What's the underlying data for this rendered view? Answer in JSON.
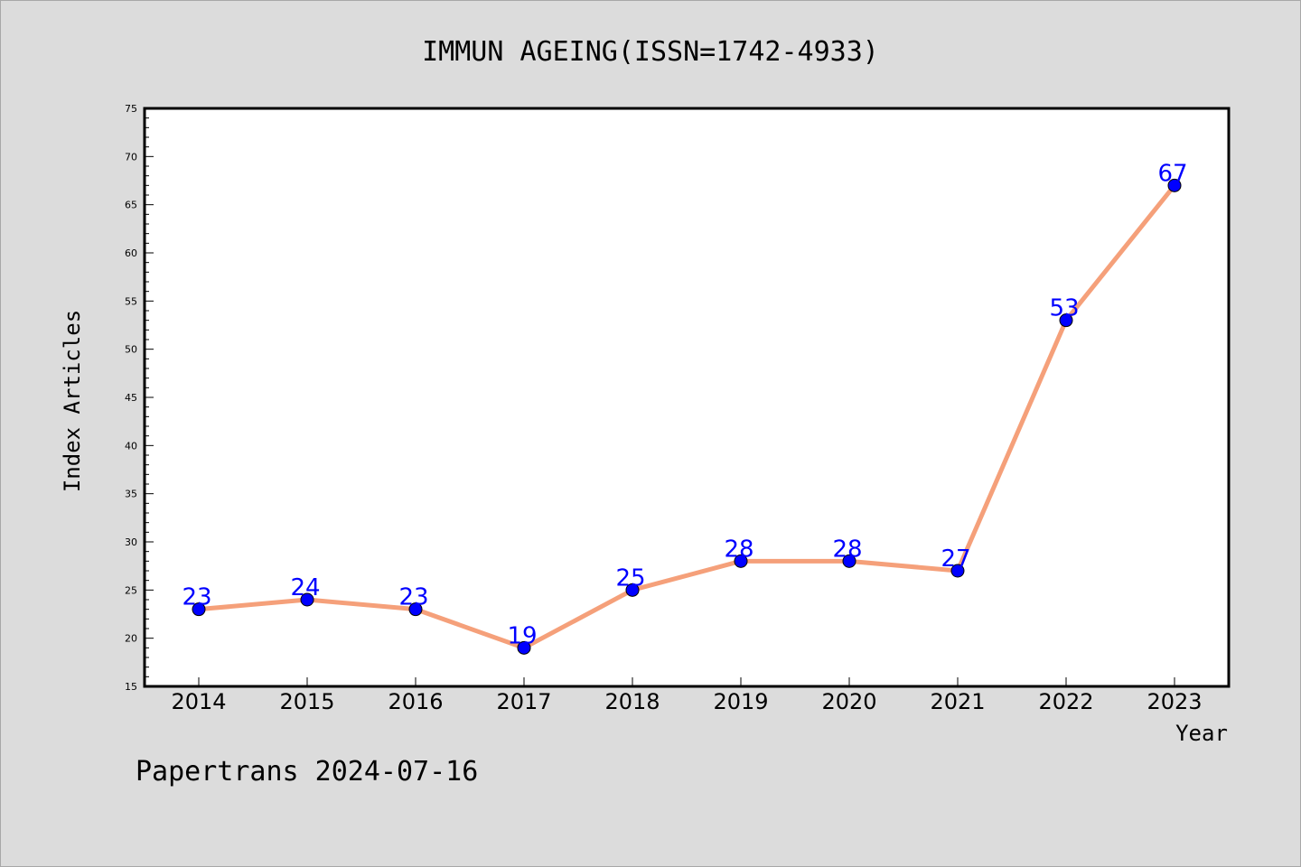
{
  "chart_data": {
    "type": "line",
    "title": "IMMUN AGEING(ISSN=1742-4933)",
    "xlabel": "Year",
    "ylabel": "Index Articles",
    "categories": [
      "2014",
      "2015",
      "2016",
      "2017",
      "2018",
      "2019",
      "2020",
      "2021",
      "2022",
      "2023"
    ],
    "values": [
      23,
      24,
      23,
      19,
      25,
      28,
      28,
      27,
      53,
      67
    ],
    "data_labels": [
      "23",
      "24",
      "23",
      "19",
      "25",
      "28",
      "28",
      "27",
      "53",
      "67"
    ],
    "ylim": [
      15,
      75
    ],
    "yticks": [
      15,
      20,
      25,
      30,
      35,
      40,
      45,
      50,
      55,
      60,
      65,
      70,
      75
    ],
    "ytick_labels": [
      "15",
      "20",
      "25",
      "30",
      "35",
      "40",
      "45",
      "50",
      "55",
      "60",
      "65",
      "70",
      "75"
    ],
    "grid": false,
    "legend": "none",
    "colors": {
      "line": "#f5a07a",
      "marker": "#0000ff",
      "data_label": "#0000ff",
      "background": "#dcdcdc",
      "plot_background": "#ffffff"
    }
  },
  "footer": {
    "text": "Papertrans 2024-07-16"
  }
}
